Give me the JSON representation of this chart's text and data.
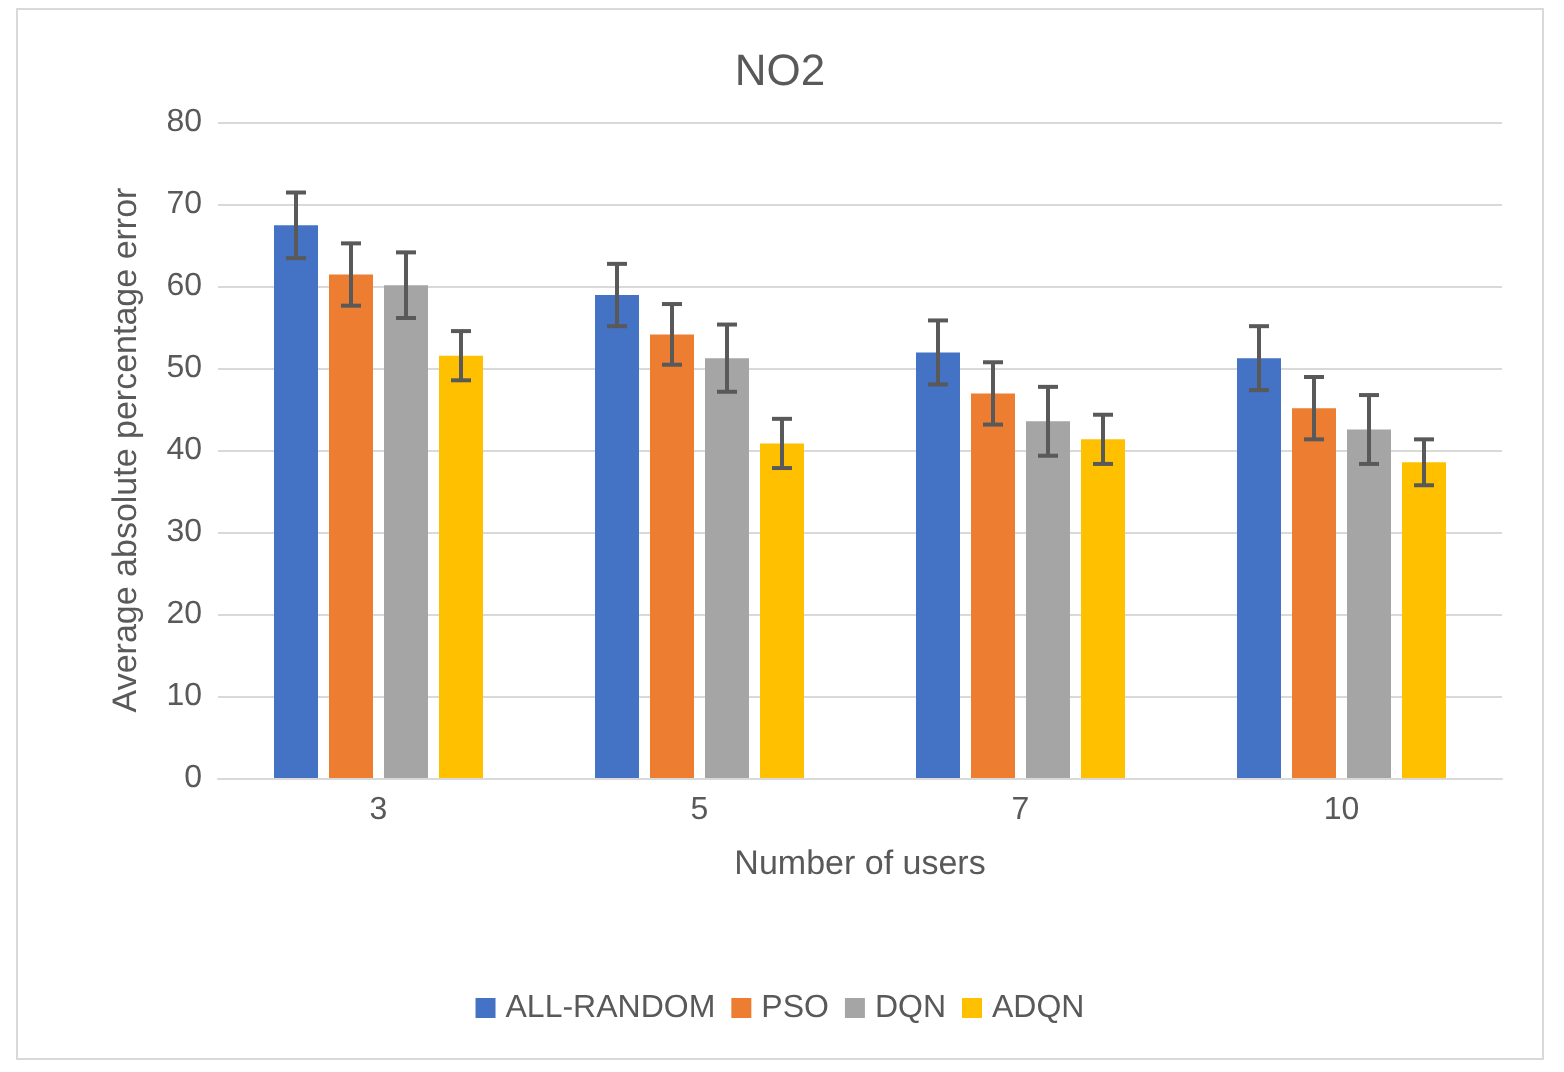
{
  "chart_data": {
    "type": "bar",
    "title": "NO2",
    "xlabel": "Number of users",
    "ylabel": "Average absolute percentage error",
    "categories": [
      "3",
      "5",
      "7",
      "10"
    ],
    "series": [
      {
        "name": "ALL-RANDOM",
        "color": "#4472c4",
        "values": [
          67.4,
          58.9,
          51.9,
          51.2
        ],
        "errors": [
          4,
          3.8,
          3.9,
          3.9
        ]
      },
      {
        "name": "PSO",
        "color": "#ed7d31",
        "values": [
          61.4,
          54.1,
          46.9,
          45.1
        ],
        "errors": [
          3.8,
          3.7,
          3.8,
          3.8
        ]
      },
      {
        "name": "DQN",
        "color": "#a5a5a5",
        "values": [
          60.1,
          51.2,
          43.5,
          42.5
        ],
        "errors": [
          4,
          4.1,
          4.2,
          4.2
        ]
      },
      {
        "name": "ADQN",
        "color": "#ffc000",
        "values": [
          51.5,
          40.8,
          41.3,
          38.5
        ],
        "errors": [
          3,
          3,
          3,
          2.8
        ]
      }
    ],
    "ylim": [
      0,
      80
    ],
    "yticks": [
      0,
      10,
      20,
      30,
      40,
      50,
      60,
      70,
      80
    ],
    "grid": "y",
    "legend": "bottom"
  }
}
